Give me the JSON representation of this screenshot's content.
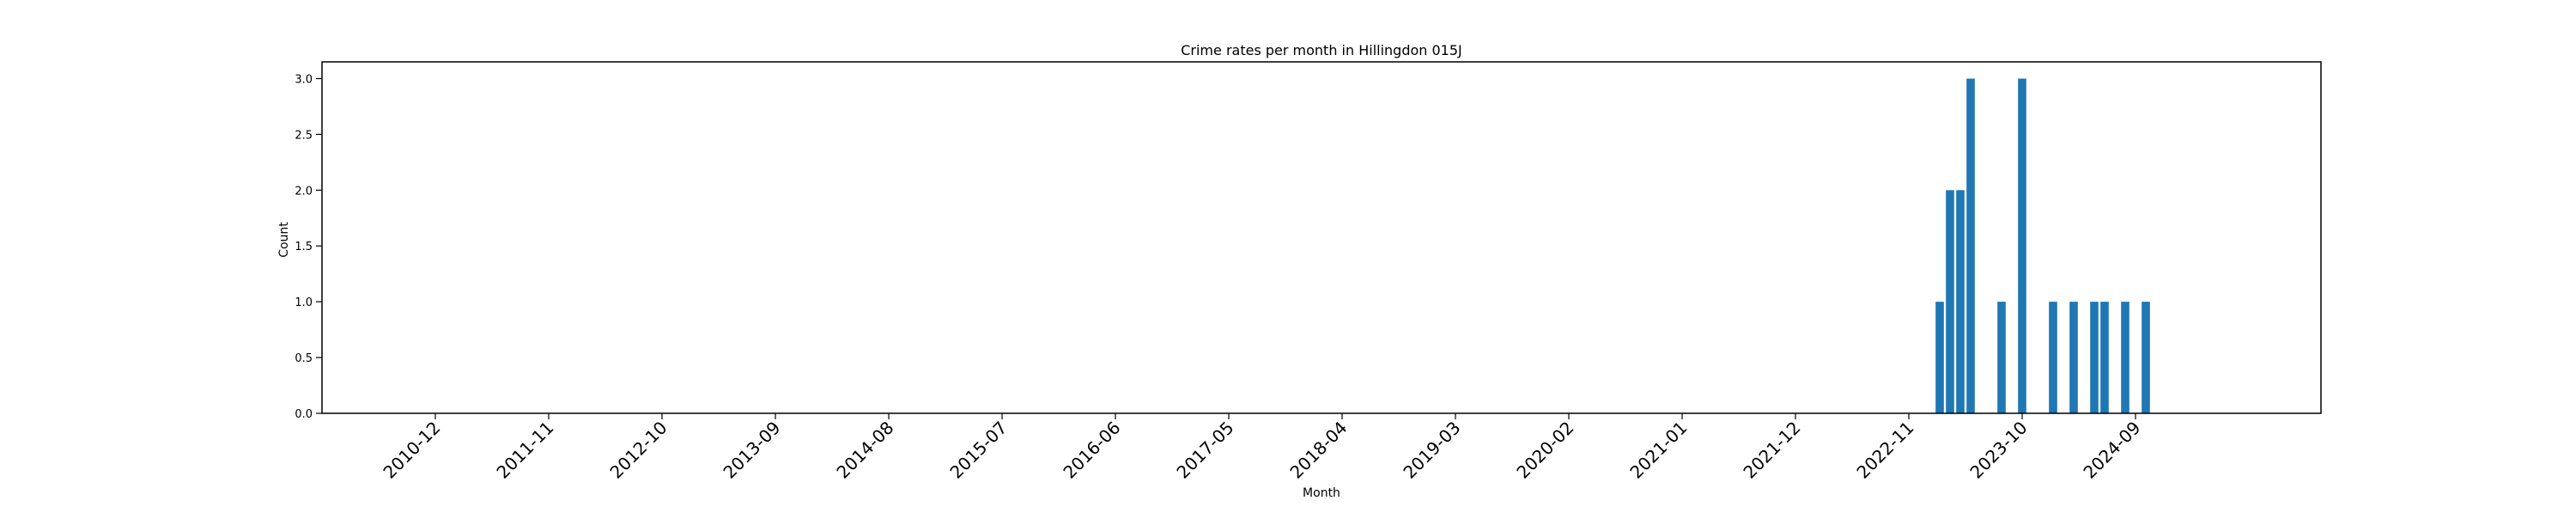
{
  "chart_data": {
    "type": "bar",
    "title": "Crime rates per month in Hillingdon 015J",
    "xlabel": "Month",
    "ylabel": "Count",
    "ylim": [
      0,
      3.15
    ],
    "y_ticks": [
      0.0,
      0.5,
      1.0,
      1.5,
      2.0,
      2.5,
      3.0
    ],
    "y_tick_labels": [
      "0.0",
      "0.5",
      "1.0",
      "1.5",
      "2.0",
      "2.5",
      "3.0"
    ],
    "x_tick_labels": [
      "2010-12",
      "2011-11",
      "2012-10",
      "2013-09",
      "2014-08",
      "2015-07",
      "2016-06",
      "2017-05",
      "2018-04",
      "2019-03",
      "2020-02",
      "2021-01",
      "2021-12",
      "2022-11",
      "2023-10",
      "2024-09"
    ],
    "xlim": [
      "2010-01",
      "2026-03"
    ],
    "bar_color": "#1f77b4",
    "grid": false,
    "categories": [
      "2023-02",
      "2023-03",
      "2023-04",
      "2023-05",
      "2023-08",
      "2023-10",
      "2024-01",
      "2024-03",
      "2024-05",
      "2024-06",
      "2024-08",
      "2024-10"
    ],
    "values": [
      1,
      2,
      2,
      3,
      1,
      3,
      1,
      1,
      1,
      1,
      1,
      1
    ]
  }
}
